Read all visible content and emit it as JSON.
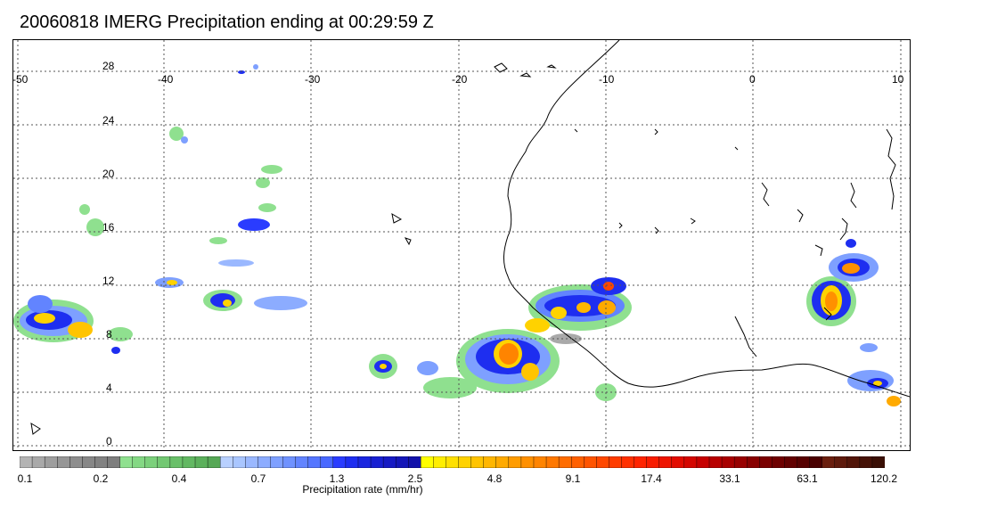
{
  "title": "20060818 IMERG Precipitation ending at 00:29:59 Z",
  "map": {
    "lon_labels": [
      "-50",
      "-40",
      "-30",
      "-20",
      "-10",
      "0",
      "10"
    ],
    "lat_labels": [
      "28",
      "24",
      "20",
      "16",
      "12",
      "8",
      "4",
      "0"
    ],
    "gridline_style": "dotted"
  },
  "colorbar": {
    "title": "Precipitation rate (mm/hr)",
    "tick_labels": [
      "0.1",
      "0.2",
      "0.4",
      "0.7",
      "1.3",
      "2.5",
      "4.8",
      "9.1",
      "17.4",
      "33.1",
      "63.1",
      "120.2"
    ],
    "colors": [
      "#b4b4b4",
      "#a9a9a9",
      "#9e9e9e",
      "#969696",
      "#8e8e8e",
      "#878787",
      "#828282",
      "#7e7e7e",
      "#8fe08f",
      "#84d884",
      "#7bd07b",
      "#72c872",
      "#69c069",
      "#62b862",
      "#5bb05b",
      "#56a856",
      "#b8d0ff",
      "#a9c6ff",
      "#9ab8ff",
      "#8cacff",
      "#7ea0ff",
      "#6f92ff",
      "#6284ff",
      "#5576ff",
      "#4868ff",
      "#2a3cff",
      "#1e2ef0",
      "#1a26e0",
      "#1820d2",
      "#161ac4",
      "#1416b8",
      "#1212aa",
      "#ffff00",
      "#ffee00",
      "#ffe000",
      "#ffd200",
      "#ffc400",
      "#ffb600",
      "#ffaa00",
      "#ff9c00",
      "#ff9000",
      "#ff8400",
      "#ff7800",
      "#ff6c00",
      "#ff6000",
      "#ff5400",
      "#ff4800",
      "#ff3c00",
      "#ff3000",
      "#ff2400",
      "#f81c00",
      "#ee1400",
      "#e20c00",
      "#d40600",
      "#c60000",
      "#b80000",
      "#a80000",
      "#980000",
      "#880000",
      "#7a0000",
      "#6e0000",
      "#620000",
      "#560000",
      "#4a0000",
      "#6a1e0e",
      "#5e1a0c",
      "#521509",
      "#461207",
      "#3a0f05"
    ]
  }
}
